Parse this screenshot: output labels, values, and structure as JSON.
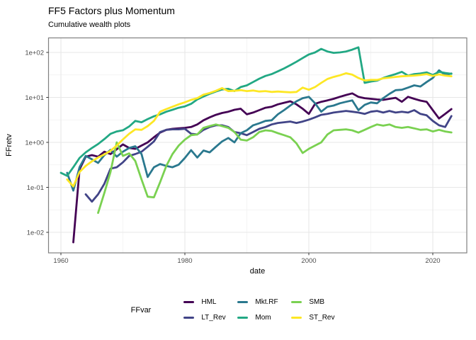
{
  "chart_data": {
    "type": "line",
    "title": "FF5 Factors plus Momentum",
    "subtitle": "Cumulative wealth plots",
    "xlabel": "date",
    "ylabel": "FFretv",
    "legend_title": "FFvar",
    "legend_position": "bottom",
    "scale": "log10-y",
    "grid": "on",
    "x_axis": {
      "ticks": [
        1960,
        1980,
        2000,
        2020
      ],
      "minor": [
        1970,
        1990,
        2010
      ],
      "range": [
        1958,
        2024.3
      ]
    },
    "y_axis": {
      "ticks": [
        {
          "label": "1e-02",
          "value": 0.01
        },
        {
          "label": "1e-01",
          "value": 0.1
        },
        {
          "label": "1e+00",
          "value": 1
        },
        {
          "label": "1e+01",
          "value": 10
        },
        {
          "label": "1e+02",
          "value": 100
        }
      ],
      "minor": [
        0.0316,
        0.316,
        3.16,
        31.6
      ],
      "range": [
        0.0037,
        200
      ]
    },
    "series": [
      {
        "name": "HML",
        "color": "#440154",
        "start_year": 1962,
        "values": [
          0.006,
          0.25,
          0.48,
          0.52,
          0.48,
          0.62,
          0.55,
          0.7,
          0.9,
          0.75,
          0.72,
          0.85,
          1.0,
          1.3,
          1.65,
          1.9,
          2.0,
          2.05,
          2.1,
          2.2,
          2.5,
          3.1,
          3.6,
          4.1,
          4.5,
          4.8,
          5.3,
          5.6,
          4.2,
          4.6,
          5.2,
          5.9,
          6.2,
          7.0,
          7.6,
          8.2,
          7.0,
          5.6,
          4.3,
          7.2,
          8.0,
          8.6,
          9.3,
          10.3,
          11.3,
          12.3,
          10.3,
          9.6,
          9.3,
          9.0,
          8.8,
          9.3,
          9.8,
          8.0,
          10.3,
          9.3,
          8.5,
          8.0,
          5.2,
          3.4,
          4.3,
          5.5
        ]
      },
      {
        "name": "LT_Rev",
        "color": "#414487",
        "start_year": 1964,
        "values": [
          0.07,
          0.048,
          0.07,
          0.12,
          0.26,
          0.28,
          0.36,
          0.5,
          0.55,
          0.62,
          0.8,
          1.05,
          1.7,
          1.9,
          1.95,
          1.95,
          2.0,
          1.55,
          1.5,
          1.9,
          2.2,
          2.4,
          2.4,
          2.2,
          1.7,
          1.6,
          1.45,
          1.7,
          2.0,
          2.2,
          2.5,
          2.7,
          2.8,
          2.9,
          2.7,
          2.9,
          3.2,
          3.6,
          4.1,
          4.3,
          4.6,
          4.8,
          5.0,
          4.8,
          4.6,
          4.3,
          4.8,
          5.0,
          4.6,
          5.0,
          4.6,
          4.8,
          4.6,
          5.2,
          4.3,
          4.0,
          3.0,
          2.4,
          2.2,
          3.85
        ]
      },
      {
        "name": "Mkt.RF",
        "color": "#2A788E",
        "start_year": 1961,
        "values": [
          0.21,
          0.085,
          0.28,
          0.5,
          0.42,
          0.35,
          0.52,
          0.68,
          0.48,
          0.62,
          0.75,
          0.82,
          0.55,
          0.17,
          0.28,
          0.33,
          0.3,
          0.28,
          0.32,
          0.45,
          0.67,
          0.46,
          0.66,
          0.6,
          0.8,
          1.05,
          1.25,
          1.0,
          1.6,
          1.86,
          2.4,
          2.65,
          3.0,
          3.1,
          4.2,
          5.2,
          6.6,
          8.2,
          9.6,
          10.3,
          7.4,
          4.8,
          6.2,
          6.6,
          7.4,
          8.0,
          8.6,
          5.2,
          6.8,
          7.7,
          7.4,
          9.6,
          12.0,
          14.5,
          14.8,
          16.5,
          18.5,
          17.5,
          22,
          27,
          40,
          31.6,
          34
        ]
      },
      {
        "name": "Mom",
        "color": "#22A884",
        "start_year": 1960,
        "values": [
          0.21,
          0.18,
          0.28,
          0.45,
          0.6,
          0.75,
          0.92,
          1.18,
          1.55,
          1.75,
          1.86,
          2.25,
          3.0,
          2.8,
          3.3,
          3.8,
          4.2,
          4.8,
          5.3,
          5.9,
          6.3,
          7.2,
          9.0,
          10.5,
          12.0,
          13.5,
          15.0,
          15.5,
          13.8,
          17.0,
          18.5,
          22,
          26,
          30,
          33,
          38,
          44,
          52,
          62,
          75,
          90,
          100,
          120,
          105,
          98,
          100,
          105,
          115,
          130,
          21,
          22.5,
          23.5,
          27,
          30,
          33,
          37,
          30.5,
          33,
          34,
          36,
          31.5,
          37,
          35,
          33.5
        ]
      },
      {
        "name": "SMB",
        "color": "#7AD151",
        "start_year": 1966,
        "values": [
          0.027,
          0.075,
          0.22,
          1.0,
          0.5,
          0.57,
          0.385,
          0.15,
          0.062,
          0.06,
          0.13,
          0.3,
          0.55,
          0.85,
          1.15,
          1.45,
          1.5,
          2.1,
          2.3,
          2.5,
          2.3,
          2.1,
          1.7,
          1.15,
          1.1,
          1.3,
          1.7,
          1.85,
          1.8,
          1.6,
          1.45,
          1.3,
          0.95,
          0.58,
          0.72,
          0.85,
          1.0,
          1.5,
          1.85,
          1.9,
          1.95,
          1.85,
          1.65,
          1.9,
          2.2,
          2.5,
          2.35,
          2.5,
          2.2,
          2.1,
          2.2,
          2.05,
          1.9,
          1.95,
          1.75,
          1.9,
          1.75,
          1.66
        ]
      },
      {
        "name": "ST_Rev",
        "color": "#FDE725",
        "start_year": 1961,
        "values": [
          0.15,
          0.105,
          0.22,
          0.3,
          0.38,
          0.46,
          0.54,
          0.65,
          0.85,
          1.16,
          1.55,
          1.95,
          1.9,
          2.3,
          3.0,
          4.8,
          5.5,
          6.2,
          7.0,
          7.8,
          8.8,
          9.6,
          11.5,
          12.5,
          14.0,
          16.1,
          13.8,
          14.0,
          14.5,
          13.8,
          14.2,
          13.5,
          13.8,
          13.2,
          13.5,
          13.2,
          13.0,
          13.2,
          16.5,
          14.8,
          17,
          21,
          25.7,
          28.5,
          31,
          34.4,
          32,
          27,
          23.8,
          24.5,
          24.5,
          26.5,
          27.5,
          28.5,
          29.5,
          30,
          30.5,
          31.5,
          33,
          30,
          32.5,
          30.5,
          29.5
        ]
      }
    ]
  }
}
